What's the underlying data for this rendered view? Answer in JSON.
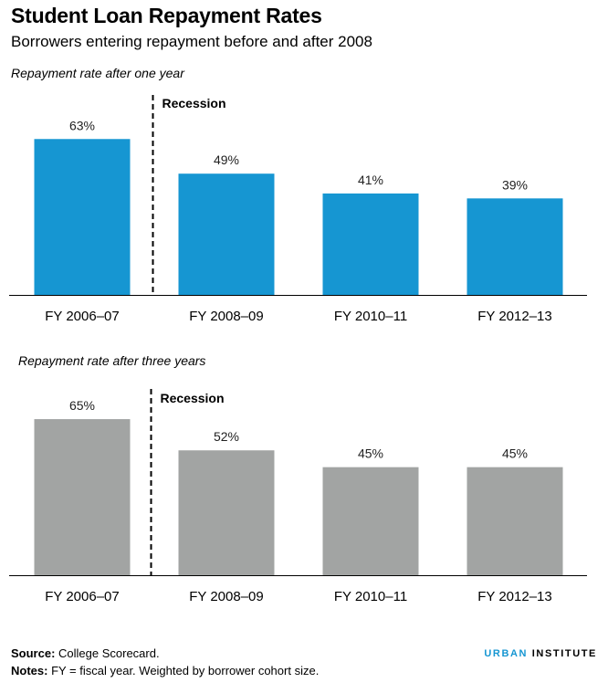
{
  "header": {
    "title": "Student Loan Repayment Rates",
    "subtitle": "Borrowers entering repayment before and after 2008"
  },
  "chart_data": [
    {
      "type": "bar",
      "title": "Repayment rate after one year",
      "categories": [
        "FY 2006–07",
        "FY 2008–09",
        "FY 2010–11",
        "FY 2012–13"
      ],
      "values": [
        63,
        49,
        41,
        39
      ],
      "value_labels": [
        "63%",
        "49%",
        "41%",
        "39%"
      ],
      "ylim": [
        0,
        65
      ],
      "color": "#1696d2",
      "grid": false,
      "annotation": {
        "text": "Recession",
        "between": [
          "FY 2006–07",
          "FY 2008–09"
        ]
      }
    },
    {
      "type": "bar",
      "title": "Repayment rate after three years",
      "categories": [
        "FY 2006–07",
        "FY 2008–09",
        "FY 2010–11",
        "FY 2012–13"
      ],
      "values": [
        65,
        52,
        45,
        45
      ],
      "value_labels": [
        "65%",
        "52%",
        "45%",
        "45%"
      ],
      "ylim": [
        0,
        65
      ],
      "color": "#a2a4a3",
      "grid": false,
      "annotation": {
        "text": "Recession",
        "between": [
          "FY 2006–07",
          "FY 2008–09"
        ]
      }
    }
  ],
  "footer": {
    "source_label": "Source:",
    "source_text": " College Scorecard.",
    "notes_label": "Notes:",
    "notes_text": " FY = fiscal year. Weighted by borrower cohort size.",
    "brand_part1": "URBAN",
    "brand_part2": "INSTITUTE"
  }
}
